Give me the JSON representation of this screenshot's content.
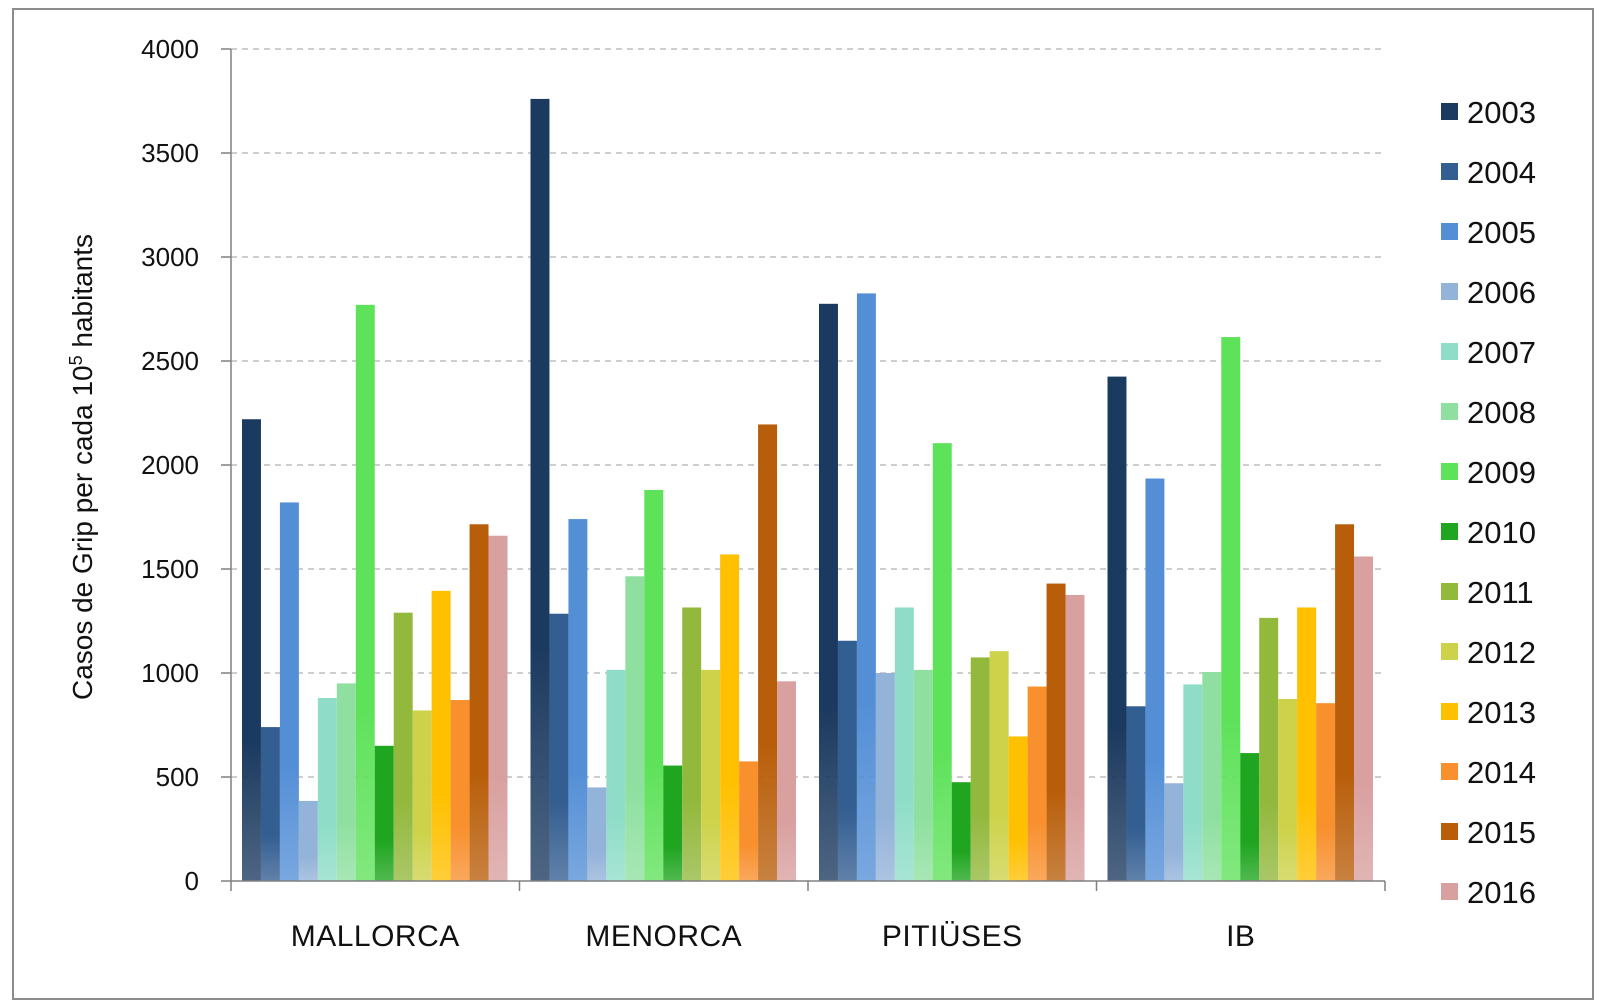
{
  "chart_data": {
    "type": "bar",
    "ylabel_main": "Casos de Grip per cada 10",
    "ylabel_sup": "5",
    "ylabel_end": " habitants",
    "ylim": [
      0,
      4000
    ],
    "yticks": [
      "0",
      "500",
      "1000",
      "1500",
      "2000",
      "2500",
      "3000",
      "3500",
      "4000"
    ],
    "grid": "horizontal-dashed",
    "legend_position": "right",
    "categories": [
      "MALLORCA",
      "MENORCA",
      "PITIÜSES",
      "IB"
    ],
    "series": [
      {
        "name": "2003",
        "color": "#1b3a5f",
        "values": [
          2220,
          3760,
          2775,
          2425
        ]
      },
      {
        "name": "2004",
        "color": "#335e91",
        "values": [
          740,
          1285,
          1155,
          840
        ]
      },
      {
        "name": "2005",
        "color": "#548fd6",
        "values": [
          1820,
          1740,
          2825,
          1935
        ]
      },
      {
        "name": "2006",
        "color": "#94b3d9",
        "values": [
          385,
          450,
          1000,
          470
        ]
      },
      {
        "name": "2007",
        "color": "#8fddc8",
        "values": [
          880,
          1015,
          1315,
          945
        ]
      },
      {
        "name": "2008",
        "color": "#8fe0a0",
        "values": [
          950,
          1465,
          1015,
          1005
        ]
      },
      {
        "name": "2009",
        "color": "#5ee25a",
        "values": [
          2770,
          1880,
          2105,
          2615
        ]
      },
      {
        "name": "2010",
        "color": "#1fa51f",
        "values": [
          650,
          555,
          475,
          615
        ]
      },
      {
        "name": "2011",
        "color": "#92b83c",
        "values": [
          1290,
          1315,
          1075,
          1265
        ]
      },
      {
        "name": "2012",
        "color": "#cdd24a",
        "values": [
          820,
          1015,
          1105,
          875
        ]
      },
      {
        "name": "2013",
        "color": "#ffc000",
        "values": [
          1395,
          1570,
          695,
          1315
        ]
      },
      {
        "name": "2014",
        "color": "#f8902e",
        "values": [
          870,
          575,
          935,
          855
        ]
      },
      {
        "name": "2015",
        "color": "#b85e0a",
        "values": [
          1715,
          2195,
          1430,
          1715
        ]
      },
      {
        "name": "2016",
        "color": "#d9a0a0",
        "values": [
          1660,
          960,
          1375,
          1560
        ]
      }
    ]
  }
}
